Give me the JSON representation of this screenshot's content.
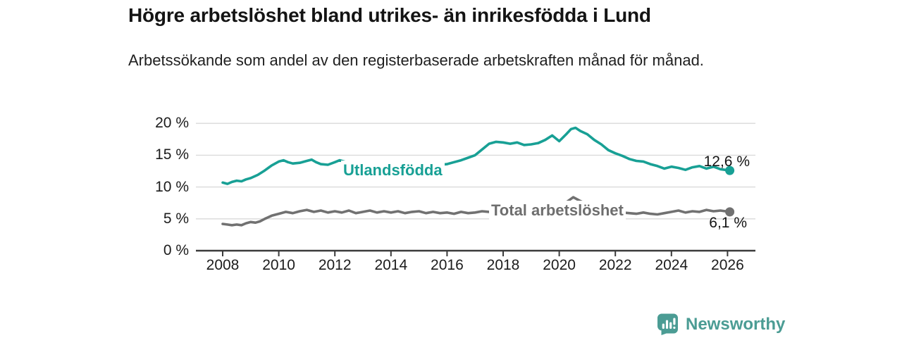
{
  "header": {
    "title": "Högre arbetslöshet bland utrikes- än inrikesfödda i Lund",
    "subtitle": "Arbetssökande som andel av den registerbaserade arbetskraften månad för månad."
  },
  "footer": {
    "brand": "Newsworthy"
  },
  "theme": {
    "accent_teal": "#18a095",
    "line_gray": "#717171",
    "label_gray": "#6e6e6e",
    "grid_color": "#dadada",
    "axis_color": "#3b3b3b",
    "text_color": "#141414",
    "logo_teal": "#4b9c94"
  },
  "chart_data": {
    "type": "line",
    "title": "Högre arbetslöshet bland utrikes- än inrikesfödda i Lund",
    "subtitle": "Arbetssökande som andel av den registerbaserade arbetskraften månad för månad.",
    "xlabel": "",
    "ylabel": "",
    "xlim": [
      2007.5,
      2027
    ],
    "ylim": [
      0,
      21
    ],
    "grid": "horizontal",
    "x_ticks": [
      2008,
      2010,
      2012,
      2014,
      2016,
      2018,
      2020,
      2022,
      2024,
      2026
    ],
    "y_ticks": [
      0,
      5,
      10,
      15,
      20
    ],
    "y_tick_labels": [
      "0 %",
      "5 %",
      "10 %",
      "15 %",
      "20 %"
    ],
    "legend_position": "inline-labels",
    "series": [
      {
        "name": "Utlandsfödda",
        "color": "#18a095",
        "end_value_label": "12,6 %",
        "end_value": 12.6,
        "points": [
          [
            2008.0,
            10.7
          ],
          [
            2008.17,
            10.5
          ],
          [
            2008.33,
            10.8
          ],
          [
            2008.5,
            11.0
          ],
          [
            2008.67,
            10.9
          ],
          [
            2008.83,
            11.2
          ],
          [
            2009.0,
            11.4
          ],
          [
            2009.25,
            11.9
          ],
          [
            2009.5,
            12.6
          ],
          [
            2009.75,
            13.4
          ],
          [
            2010.0,
            14.0
          ],
          [
            2010.17,
            14.2
          ],
          [
            2010.33,
            13.9
          ],
          [
            2010.5,
            13.7
          ],
          [
            2010.75,
            13.8
          ],
          [
            2011.0,
            14.1
          ],
          [
            2011.17,
            14.3
          ],
          [
            2011.33,
            13.9
          ],
          [
            2011.5,
            13.6
          ],
          [
            2011.75,
            13.5
          ],
          [
            2012.0,
            13.9
          ],
          [
            2012.17,
            14.2
          ],
          [
            2012.33,
            14.0
          ],
          [
            2012.5,
            13.8
          ],
          [
            2012.75,
            13.6
          ],
          [
            2013.0,
            13.9
          ],
          [
            2013.25,
            13.7
          ],
          [
            2013.5,
            13.5
          ],
          [
            2013.75,
            13.7
          ],
          [
            2014.0,
            13.8
          ],
          [
            2014.25,
            13.6
          ],
          [
            2014.5,
            13.4
          ],
          [
            2014.75,
            13.6
          ],
          [
            2015.0,
            13.7
          ],
          [
            2015.25,
            13.4
          ],
          [
            2015.5,
            13.3
          ],
          [
            2015.75,
            13.5
          ],
          [
            2016.0,
            13.6
          ],
          [
            2016.25,
            13.9
          ],
          [
            2016.5,
            14.2
          ],
          [
            2016.75,
            14.6
          ],
          [
            2017.0,
            15.0
          ],
          [
            2017.25,
            15.9
          ],
          [
            2017.5,
            16.8
          ],
          [
            2017.75,
            17.1
          ],
          [
            2018.0,
            17.0
          ],
          [
            2018.25,
            16.8
          ],
          [
            2018.5,
            17.0
          ],
          [
            2018.75,
            16.6
          ],
          [
            2019.0,
            16.7
          ],
          [
            2019.25,
            16.9
          ],
          [
            2019.5,
            17.4
          ],
          [
            2019.75,
            18.1
          ],
          [
            2020.0,
            17.2
          ],
          [
            2020.25,
            18.3
          ],
          [
            2020.42,
            19.1
          ],
          [
            2020.58,
            19.3
          ],
          [
            2020.75,
            18.8
          ],
          [
            2021.0,
            18.3
          ],
          [
            2021.25,
            17.4
          ],
          [
            2021.5,
            16.7
          ],
          [
            2021.75,
            15.8
          ],
          [
            2022.0,
            15.3
          ],
          [
            2022.25,
            14.9
          ],
          [
            2022.5,
            14.4
          ],
          [
            2022.75,
            14.1
          ],
          [
            2023.0,
            14.0
          ],
          [
            2023.25,
            13.6
          ],
          [
            2023.5,
            13.3
          ],
          [
            2023.75,
            12.9
          ],
          [
            2024.0,
            13.2
          ],
          [
            2024.25,
            13.0
          ],
          [
            2024.5,
            12.7
          ],
          [
            2024.75,
            13.1
          ],
          [
            2025.0,
            13.3
          ],
          [
            2025.25,
            12.9
          ],
          [
            2025.5,
            13.2
          ],
          [
            2025.75,
            12.8
          ],
          [
            2026.08,
            12.6
          ]
        ]
      },
      {
        "name": "Total arbetslöshet",
        "color": "#717171",
        "end_value_label": "6,1 %",
        "end_value": 6.1,
        "points": [
          [
            2008.0,
            4.2
          ],
          [
            2008.17,
            4.1
          ],
          [
            2008.33,
            4.0
          ],
          [
            2008.5,
            4.1
          ],
          [
            2008.67,
            4.0
          ],
          [
            2008.83,
            4.3
          ],
          [
            2009.0,
            4.5
          ],
          [
            2009.17,
            4.4
          ],
          [
            2009.33,
            4.6
          ],
          [
            2009.5,
            5.0
          ],
          [
            2009.75,
            5.5
          ],
          [
            2010.0,
            5.8
          ],
          [
            2010.25,
            6.1
          ],
          [
            2010.5,
            5.9
          ],
          [
            2010.75,
            6.2
          ],
          [
            2011.0,
            6.4
          ],
          [
            2011.25,
            6.1
          ],
          [
            2011.5,
            6.3
          ],
          [
            2011.75,
            6.0
          ],
          [
            2012.0,
            6.2
          ],
          [
            2012.25,
            6.0
          ],
          [
            2012.5,
            6.3
          ],
          [
            2012.75,
            5.9
          ],
          [
            2013.0,
            6.1
          ],
          [
            2013.25,
            6.3
          ],
          [
            2013.5,
            6.0
          ],
          [
            2013.75,
            6.2
          ],
          [
            2014.0,
            6.0
          ],
          [
            2014.25,
            6.2
          ],
          [
            2014.5,
            5.9
          ],
          [
            2014.75,
            6.1
          ],
          [
            2015.0,
            6.2
          ],
          [
            2015.25,
            5.9
          ],
          [
            2015.5,
            6.1
          ],
          [
            2015.75,
            5.9
          ],
          [
            2016.0,
            6.0
          ],
          [
            2016.25,
            5.8
          ],
          [
            2016.5,
            6.1
          ],
          [
            2016.75,
            5.9
          ],
          [
            2017.0,
            6.0
          ],
          [
            2017.25,
            6.2
          ],
          [
            2017.5,
            6.1
          ],
          [
            2017.75,
            6.3
          ],
          [
            2018.0,
            6.1
          ],
          [
            2018.25,
            6.0
          ],
          [
            2018.5,
            6.2
          ],
          [
            2018.75,
            6.0
          ],
          [
            2019.0,
            6.1
          ],
          [
            2019.25,
            6.0
          ],
          [
            2019.5,
            6.2
          ],
          [
            2019.75,
            6.3
          ],
          [
            2020.0,
            6.5
          ],
          [
            2020.25,
            7.6
          ],
          [
            2020.5,
            8.4
          ],
          [
            2020.75,
            7.8
          ],
          [
            2021.0,
            7.3
          ],
          [
            2021.25,
            6.9
          ],
          [
            2021.5,
            6.6
          ],
          [
            2021.75,
            6.4
          ],
          [
            2022.0,
            6.2
          ],
          [
            2022.25,
            6.0
          ],
          [
            2022.5,
            5.9
          ],
          [
            2022.75,
            5.8
          ],
          [
            2023.0,
            6.0
          ],
          [
            2023.25,
            5.8
          ],
          [
            2023.5,
            5.7
          ],
          [
            2023.75,
            5.9
          ],
          [
            2024.0,
            6.1
          ],
          [
            2024.25,
            6.3
          ],
          [
            2024.5,
            6.0
          ],
          [
            2024.75,
            6.2
          ],
          [
            2025.0,
            6.1
          ],
          [
            2025.25,
            6.4
          ],
          [
            2025.5,
            6.2
          ],
          [
            2025.75,
            6.3
          ],
          [
            2026.08,
            6.1
          ]
        ]
      }
    ]
  }
}
